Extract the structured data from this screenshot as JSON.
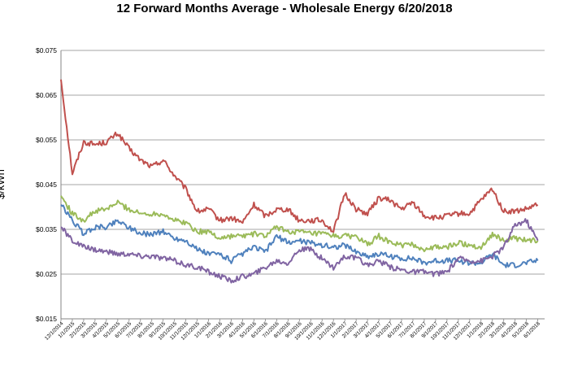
{
  "chart_data": {
    "type": "line",
    "title": "12 Forward Months Average - Wholesale Energy 6/20/2018",
    "xlabel": "",
    "ylabel": "$/kWh",
    "ylim": [
      0.015,
      0.075
    ],
    "yticks": [
      "$0.015",
      "$0.025",
      "$0.035",
      "$0.045",
      "$0.055",
      "$0.065",
      "$0.075"
    ],
    "ytick_values": [
      0.015,
      0.025,
      0.035,
      0.045,
      0.055,
      0.065,
      0.075
    ],
    "grid": true,
    "legend": "none",
    "x_categories": [
      "12/1/2014",
      "1/1/2015",
      "2/1/2015",
      "3/1/2015",
      "4/1/2015",
      "5/1/2015",
      "6/1/2015",
      "7/1/2015",
      "8/1/2015",
      "9/1/2015",
      "10/1/2015",
      "11/1/2015",
      "12/1/2015",
      "1/1/2016",
      "2/1/2016",
      "3/1/2016",
      "4/1/2016",
      "5/1/2016",
      "6/1/2016",
      "7/1/2016",
      "8/1/2016",
      "9/1/2016",
      "10/1/2016",
      "11/1/2016",
      "12/1/2016",
      "1/1/2017",
      "2/1/2017",
      "3/1/2017",
      "4/1/2017",
      "5/1/2017",
      "6/1/2017",
      "7/1/2017",
      "8/1/2017",
      "9/1/2017",
      "10/1/2017",
      "11/1/2017",
      "12/1/2017",
      "1/1/2018",
      "2/1/2018",
      "3/1/2018",
      "4/1/2018",
      "5/1/2018",
      "6/1/2018"
    ],
    "series": [
      {
        "color": "#c0504d",
        "values": [
          0.0685,
          0.0475,
          0.0545,
          0.054,
          0.0545,
          0.0565,
          0.053,
          0.0505,
          0.049,
          0.0505,
          0.047,
          0.044,
          0.039,
          0.0395,
          0.037,
          0.0375,
          0.0365,
          0.0405,
          0.038,
          0.0395,
          0.0395,
          0.037,
          0.037,
          0.037,
          0.0345,
          0.043,
          0.0395,
          0.0385,
          0.042,
          0.0415,
          0.0395,
          0.041,
          0.038,
          0.0375,
          0.038,
          0.0385,
          0.0385,
          0.0415,
          0.044,
          0.039,
          0.039,
          0.0395,
          0.0405
        ]
      },
      {
        "color": "#9bbb59",
        "values": [
          0.0425,
          0.0385,
          0.037,
          0.039,
          0.0395,
          0.041,
          0.0395,
          0.0385,
          0.0385,
          0.0385,
          0.037,
          0.0365,
          0.0345,
          0.0345,
          0.033,
          0.0335,
          0.0335,
          0.034,
          0.0335,
          0.0355,
          0.0345,
          0.0345,
          0.034,
          0.034,
          0.0335,
          0.0335,
          0.0335,
          0.0315,
          0.0335,
          0.032,
          0.0315,
          0.0315,
          0.0305,
          0.031,
          0.031,
          0.032,
          0.0315,
          0.031,
          0.034,
          0.0325,
          0.033,
          0.0325,
          0.0325
        ]
      },
      {
        "color": "#4f81bd",
        "values": [
          0.0405,
          0.037,
          0.034,
          0.0355,
          0.0355,
          0.037,
          0.0355,
          0.034,
          0.034,
          0.0345,
          0.033,
          0.0325,
          0.0305,
          0.0295,
          0.0295,
          0.028,
          0.0295,
          0.031,
          0.03,
          0.0335,
          0.032,
          0.0325,
          0.032,
          0.0315,
          0.031,
          0.0315,
          0.03,
          0.029,
          0.0295,
          0.029,
          0.0285,
          0.0285,
          0.0275,
          0.028,
          0.028,
          0.028,
          0.0275,
          0.0275,
          0.0295,
          0.027,
          0.027,
          0.0275,
          0.028
        ]
      },
      {
        "color": "#8064a2",
        "values": [
          0.0355,
          0.0325,
          0.031,
          0.0305,
          0.03,
          0.0295,
          0.0295,
          0.029,
          0.029,
          0.0285,
          0.028,
          0.027,
          0.0265,
          0.0255,
          0.0245,
          0.0235,
          0.0245,
          0.025,
          0.0265,
          0.028,
          0.0275,
          0.0305,
          0.0305,
          0.0285,
          0.0265,
          0.029,
          0.0285,
          0.027,
          0.028,
          0.0265,
          0.026,
          0.0255,
          0.0255,
          0.025,
          0.0255,
          0.0285,
          0.028,
          0.028,
          0.029,
          0.031,
          0.036,
          0.037,
          0.0325
        ]
      }
    ]
  }
}
